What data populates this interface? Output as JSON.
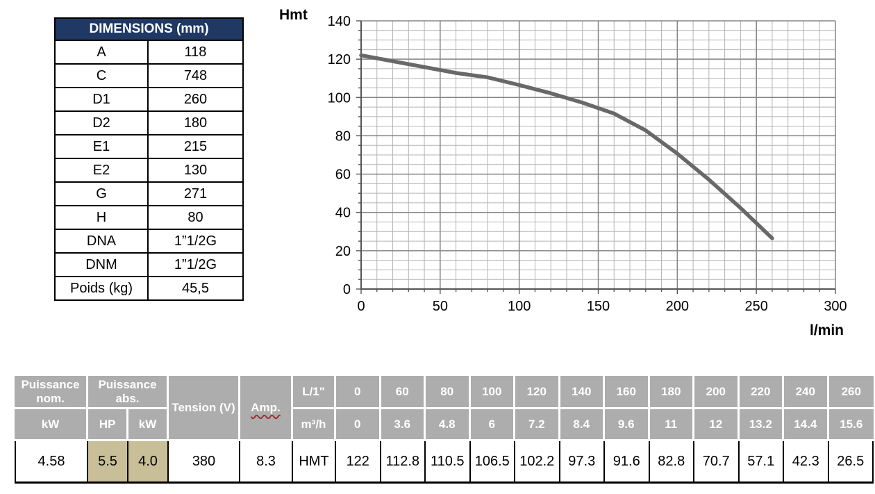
{
  "colors": {
    "header_navy": "#1F3864",
    "header_gray": "#ADADAD",
    "highlight_tan": "#C8BF98",
    "curve_gray": "#686868"
  },
  "dimensions_table": {
    "title": "DIMENSIONS (mm)",
    "rows": [
      {
        "label": "A",
        "value": "118"
      },
      {
        "label": "C",
        "value": "748"
      },
      {
        "label": "D1",
        "value": "260"
      },
      {
        "label": "D2",
        "value": "180"
      },
      {
        "label": "E1",
        "value": "215"
      },
      {
        "label": "E2",
        "value": "130"
      },
      {
        "label": "G",
        "value": "271"
      },
      {
        "label": "H",
        "value": "80"
      },
      {
        "label": "DNA",
        "value": "1”1/2G"
      },
      {
        "label": "DNM",
        "value": "1”1/2G"
      },
      {
        "label": "Poids (kg)",
        "value": "45,5"
      }
    ]
  },
  "chart_data": {
    "type": "line",
    "title": "",
    "ylabel": "Hmt",
    "xlabel": "l/min",
    "xlim": [
      0,
      300
    ],
    "ylim": [
      0,
      140
    ],
    "xticks": [
      0,
      50,
      100,
      150,
      200,
      250,
      300
    ],
    "yticks": [
      0,
      20,
      40,
      60,
      80,
      100,
      120,
      140
    ],
    "x_minor_step": 10,
    "y_minor_step": 5,
    "grid": true,
    "legend": "none",
    "series": [
      {
        "name": "HMT",
        "color": "#686868",
        "x": [
          0,
          60,
          80,
          100,
          120,
          140,
          160,
          180,
          200,
          220,
          240,
          260
        ],
        "y": [
          122,
          112.8,
          110.5,
          106.5,
          102.2,
          97.3,
          91.6,
          82.8,
          70.7,
          57.1,
          42.3,
          26.5
        ]
      }
    ]
  },
  "spec_table": {
    "header": {
      "puissance_nom": "Puissance nom.",
      "puissance_abs": "Puissance abs.",
      "kw": "kW",
      "hp": "HP",
      "tension": "Tension (V)",
      "amp": "Amp.",
      "flow_lmin_label": "L/1\"",
      "flow_m3h_label": "m³/h",
      "hmt": "HMT"
    },
    "values": {
      "puissance_nom_kw": "4.58",
      "puissance_abs_hp": "5.5",
      "puissance_abs_kw": "4.0",
      "tension_v": "380",
      "amp": "8.3"
    },
    "flow_lmin": [
      "0",
      "60",
      "80",
      "100",
      "120",
      "140",
      "160",
      "180",
      "200",
      "220",
      "240",
      "260"
    ],
    "flow_m3h": [
      "0",
      "3.6",
      "4.8",
      "6",
      "7.2",
      "8.4",
      "9.6",
      "11",
      "12",
      "13.2",
      "14.4",
      "15.6"
    ],
    "hmt": [
      "122",
      "112.8",
      "110.5",
      "106.5",
      "102.2",
      "97.3",
      "91.6",
      "82.8",
      "70.7",
      "57.1",
      "42.3",
      "26.5"
    ]
  }
}
